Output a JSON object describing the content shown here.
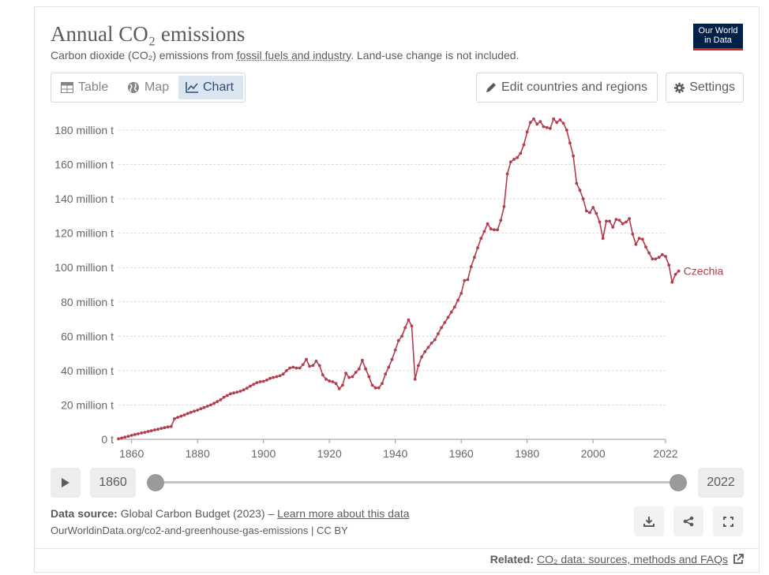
{
  "header": {
    "title": "Annual CO₂ emissions",
    "subtitle_pre": "Carbon dioxide (CO₂) emissions from ",
    "subtitle_link": "fossil fuels and industry",
    "subtitle_post": ". Land-use change is not included.",
    "logo_line1": "Our World",
    "logo_line2": "in Data"
  },
  "tabs": [
    {
      "label": "Table",
      "icon": "table-icon"
    },
    {
      "label": "Map",
      "icon": "globe-icon"
    },
    {
      "label": "Chart",
      "icon": "line-chart-icon",
      "active": true
    }
  ],
  "buttons": {
    "edit": "Edit countries and regions",
    "settings": "Settings"
  },
  "timeline": {
    "start_year": "1860",
    "end_year": "2022"
  },
  "footer": {
    "source_label": "Data source:",
    "source_text": " Global Carbon Budget (2023) – ",
    "learn_more": "Learn more about this data",
    "url_line": "OurWorldinData.org/co2-and-greenhouse-gas-emissions | CC BY",
    "related_label": "Related:",
    "related_link": "CO₂ data: sources, methods and FAQs"
  },
  "colors": {
    "series": "#b13d4e",
    "accent": "#2d4d77"
  },
  "chart_data": {
    "type": "line",
    "title": "Annual CO₂ emissions",
    "xlim": [
      1856,
      2022
    ],
    "ylim": [
      0,
      180
    ],
    "y_unit": "million t",
    "x_ticks": [
      1860,
      1880,
      1900,
      1920,
      1940,
      1960,
      1980,
      2000,
      2022
    ],
    "y_ticks": [
      {
        "value": 0,
        "label": "0 t"
      },
      {
        "value": 20,
        "label": "20 million t"
      },
      {
        "value": 40,
        "label": "40 million t"
      },
      {
        "value": 60,
        "label": "60 million t"
      },
      {
        "value": 80,
        "label": "80 million t"
      },
      {
        "value": 100,
        "label": "100 million t"
      },
      {
        "value": 120,
        "label": "120 million t"
      },
      {
        "value": 140,
        "label": "140 million t"
      },
      {
        "value": 160,
        "label": "160 million t"
      },
      {
        "value": 180,
        "label": "180 million t"
      }
    ],
    "grid": true,
    "series": [
      {
        "name": "Czechia",
        "color": "#b13d4e",
        "points": [
          [
            1856,
            0.3
          ],
          [
            1857,
            0.8
          ],
          [
            1858,
            1.3
          ],
          [
            1859,
            1.8
          ],
          [
            1860,
            2.3
          ],
          [
            1861,
            2.8
          ],
          [
            1862,
            3.2
          ],
          [
            1863,
            3.7
          ],
          [
            1864,
            4.1
          ],
          [
            1865,
            4.6
          ],
          [
            1866,
            5.0
          ],
          [
            1867,
            5.5
          ],
          [
            1868,
            5.9
          ],
          [
            1869,
            6.4
          ],
          [
            1870,
            6.8
          ],
          [
            1871,
            7.2
          ],
          [
            1872,
            7.5
          ],
          [
            1873,
            12.0
          ],
          [
            1874,
            12.8
          ],
          [
            1875,
            13.5
          ],
          [
            1876,
            14.2
          ],
          [
            1877,
            15.0
          ],
          [
            1878,
            15.7
          ],
          [
            1879,
            16.4
          ],
          [
            1880,
            17.0
          ],
          [
            1881,
            17.8
          ],
          [
            1882,
            18.5
          ],
          [
            1883,
            19.3
          ],
          [
            1884,
            20.0
          ],
          [
            1885,
            21.0
          ],
          [
            1886,
            22.0
          ],
          [
            1887,
            23.0
          ],
          [
            1888,
            24.5
          ],
          [
            1889,
            25.5
          ],
          [
            1890,
            26.5
          ],
          [
            1891,
            27.0
          ],
          [
            1892,
            27.5
          ],
          [
            1893,
            28.0
          ],
          [
            1894,
            28.8
          ],
          [
            1895,
            29.8
          ],
          [
            1896,
            31.0
          ],
          [
            1897,
            32.0
          ],
          [
            1898,
            33.0
          ],
          [
            1899,
            33.5
          ],
          [
            1900,
            33.8
          ],
          [
            1901,
            34.5
          ],
          [
            1902,
            35.5
          ],
          [
            1903,
            36.0
          ],
          [
            1904,
            36.5
          ],
          [
            1905,
            37.0
          ],
          [
            1906,
            38.0
          ],
          [
            1907,
            40.0
          ],
          [
            1908,
            41.5
          ],
          [
            1909,
            42.0
          ],
          [
            1910,
            41.5
          ],
          [
            1911,
            41.5
          ],
          [
            1912,
            43.5
          ],
          [
            1913,
            46.5
          ],
          [
            1914,
            42.5
          ],
          [
            1915,
            43.0
          ],
          [
            1916,
            45.5
          ],
          [
            1917,
            43.0
          ],
          [
            1918,
            37.5
          ],
          [
            1919,
            35.0
          ],
          [
            1920,
            34.0
          ],
          [
            1921,
            33.5
          ],
          [
            1922,
            32.5
          ],
          [
            1923,
            29.5
          ],
          [
            1924,
            31.5
          ],
          [
            1925,
            38.5
          ],
          [
            1926,
            36.0
          ],
          [
            1927,
            36.5
          ],
          [
            1928,
            39.0
          ],
          [
            1929,
            41.0
          ],
          [
            1930,
            46.0
          ],
          [
            1931,
            41.0
          ],
          [
            1932,
            36.5
          ],
          [
            1933,
            31.5
          ],
          [
            1934,
            30.0
          ],
          [
            1935,
            30.0
          ],
          [
            1936,
            32.5
          ],
          [
            1937,
            38.0
          ],
          [
            1938,
            42.0
          ],
          [
            1939,
            46.5
          ],
          [
            1940,
            52.0
          ],
          [
            1941,
            57.5
          ],
          [
            1942,
            60.0
          ],
          [
            1943,
            65.0
          ],
          [
            1944,
            69.5
          ],
          [
            1945,
            66.0
          ],
          [
            1946,
            35.0
          ],
          [
            1947,
            43.0
          ],
          [
            1948,
            48.0
          ],
          [
            1949,
            51.0
          ],
          [
            1950,
            53.5
          ],
          [
            1951,
            56.0
          ],
          [
            1952,
            58.0
          ],
          [
            1953,
            61.5
          ],
          [
            1954,
            65.0
          ],
          [
            1955,
            68.0
          ],
          [
            1956,
            71.0
          ],
          [
            1957,
            74.0
          ],
          [
            1958,
            77.0
          ],
          [
            1959,
            81.0
          ],
          [
            1960,
            85.0
          ],
          [
            1961,
            92.5
          ],
          [
            1962,
            93.0
          ],
          [
            1963,
            100.5
          ],
          [
            1964,
            106.0
          ],
          [
            1965,
            111.5
          ],
          [
            1966,
            117.0
          ],
          [
            1967,
            121.0
          ],
          [
            1968,
            125.5
          ],
          [
            1969,
            122.5
          ],
          [
            1970,
            122.0
          ],
          [
            1971,
            122.0
          ],
          [
            1972,
            127.5
          ],
          [
            1973,
            135.5
          ],
          [
            1974,
            154.5
          ],
          [
            1975,
            161.5
          ],
          [
            1976,
            163.0
          ],
          [
            1977,
            164.0
          ],
          [
            1978,
            166.5
          ],
          [
            1979,
            171.5
          ],
          [
            1980,
            179.0
          ],
          [
            1981,
            184.5
          ],
          [
            1982,
            186.5
          ],
          [
            1983,
            183.5
          ],
          [
            1984,
            185.0
          ],
          [
            1985,
            182.0
          ],
          [
            1986,
            181.5
          ],
          [
            1987,
            181.0
          ],
          [
            1988,
            186.5
          ],
          [
            1989,
            184.5
          ],
          [
            1990,
            186.0
          ],
          [
            1991,
            184.0
          ],
          [
            1992,
            180.0
          ],
          [
            1993,
            172.5
          ],
          [
            1994,
            165.0
          ],
          [
            1995,
            149.0
          ],
          [
            1996,
            145.0
          ],
          [
            1997,
            140.0
          ],
          [
            1998,
            133.0
          ],
          [
            1999,
            132.0
          ],
          [
            2000,
            135.0
          ],
          [
            2001,
            131.5
          ],
          [
            2002,
            126.5
          ],
          [
            2003,
            117.0
          ],
          [
            2004,
            127.0
          ],
          [
            2005,
            127.0
          ],
          [
            2006,
            123.5
          ],
          [
            2007,
            128.0
          ],
          [
            2008,
            127.5
          ],
          [
            2009,
            125.5
          ],
          [
            2010,
            126.5
          ],
          [
            2011,
            128.5
          ],
          [
            2012,
            119.5
          ],
          [
            2013,
            113.5
          ],
          [
            2014,
            117.0
          ],
          [
            2015,
            116.5
          ],
          [
            2016,
            112.0
          ],
          [
            2017,
            108.5
          ],
          [
            2018,
            105.0
          ],
          [
            2019,
            105.0
          ],
          [
            2020,
            106.0
          ],
          [
            2021,
            107.5
          ],
          [
            2022,
            106.5
          ],
          [
            2023,
            101.5
          ],
          [
            2024,
            91.5
          ],
          [
            2025,
            96.0
          ],
          [
            2026,
            98.0
          ]
        ]
      }
    ]
  }
}
